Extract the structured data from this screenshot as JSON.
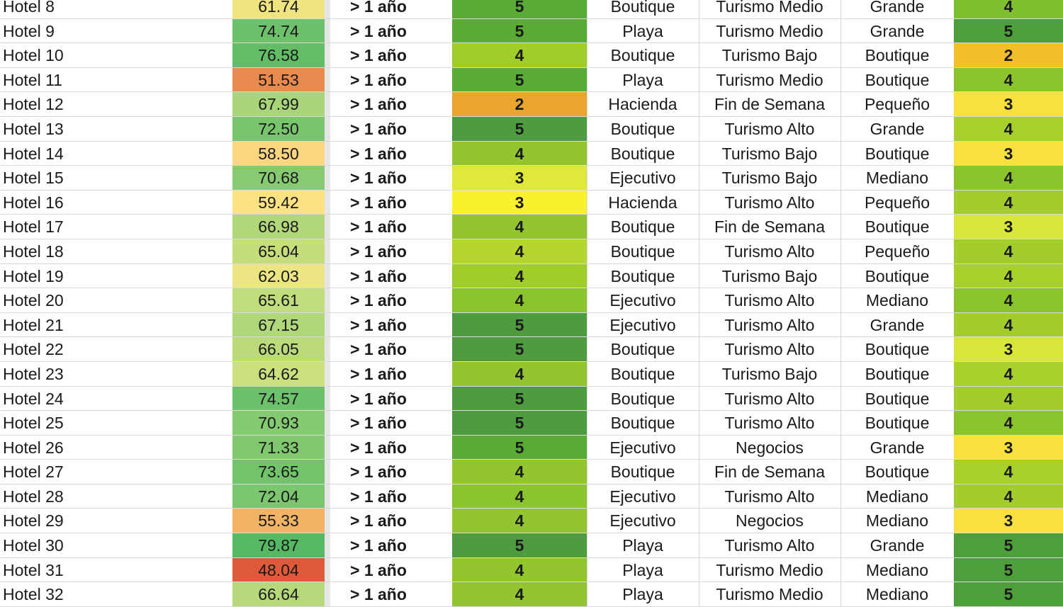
{
  "rows": [
    {
      "name": "Hotel 8",
      "score": "61.74",
      "score_color": "#f0e481",
      "time": "> 1 año",
      "rating": "5",
      "rating_color": "#5aaa36",
      "type": "Boutique",
      "segment": "Turismo Medio",
      "size": "Grande",
      "rating2": "4",
      "rating2_color": "#7fc030"
    },
    {
      "name": "Hotel 9",
      "score": "74.74",
      "score_color": "#6cc16a",
      "time": "> 1 año",
      "rating": "5",
      "rating_color": "#5aaa36",
      "type": "Playa",
      "segment": "Turismo Medio",
      "size": "Grande",
      "rating2": "5",
      "rating2_color": "#4f9e3c"
    },
    {
      "name": "Hotel 10",
      "score": "76.58",
      "score_color": "#63bd66",
      "time": "> 1 año",
      "rating": "4",
      "rating_color": "#a1cd2a",
      "type": "Boutique",
      "segment": "Turismo Bajo",
      "size": "Boutique",
      "rating2": "2",
      "rating2_color": "#f3bd2c"
    },
    {
      "name": "Hotel 11",
      "score": "51.53",
      "score_color": "#e88a4e",
      "time": "> 1 año",
      "rating": "5",
      "rating_color": "#5aaa36",
      "type": "Playa",
      "segment": "Turismo Medio",
      "size": "Boutique",
      "rating2": "4",
      "rating2_color": "#8cc42c"
    },
    {
      "name": "Hotel 12",
      "score": "67.99",
      "score_color": "#a8d57a",
      "time": "> 1 año",
      "rating": "2",
      "rating_color": "#eaa52e",
      "type": "Hacienda",
      "segment": "Fin de Semana",
      "size": "Pequeño",
      "rating2": "3",
      "rating2_color": "#f7e13c"
    },
    {
      "name": "Hotel 13",
      "score": "72.50",
      "score_color": "#79c56e",
      "time": "> 1 año",
      "rating": "5",
      "rating_color": "#4e9b40",
      "type": "Boutique",
      "segment": "Turismo Alto",
      "size": "Grande",
      "rating2": "4",
      "rating2_color": "#a8d02c"
    },
    {
      "name": "Hotel 14",
      "score": "58.50",
      "score_color": "#fbd580",
      "time": "> 1 año",
      "rating": "4",
      "rating_color": "#93c62e",
      "type": "Boutique",
      "segment": "Turismo Bajo",
      "size": "Boutique",
      "rating2": "3",
      "rating2_color": "#f8e03e"
    },
    {
      "name": "Hotel 15",
      "score": "70.68",
      "score_color": "#86ca72",
      "time": "> 1 año",
      "rating": "3",
      "rating_color": "#dfe93a",
      "type": "Ejecutivo",
      "segment": "Turismo Bajo",
      "size": "Mediano",
      "rating2": "4",
      "rating2_color": "#8cc42c"
    },
    {
      "name": "Hotel 16",
      "score": "59.42",
      "score_color": "#fce282",
      "time": "> 1 año",
      "rating": "3",
      "rating_color": "#f8f12c",
      "type": "Hacienda",
      "segment": "Turismo Alto",
      "size": "Pequeño",
      "rating2": "4",
      "rating2_color": "#a3cd2c"
    },
    {
      "name": "Hotel 17",
      "score": "66.98",
      "score_color": "#b2d87a",
      "time": "> 1 año",
      "rating": "4",
      "rating_color": "#93c62e",
      "type": "Boutique",
      "segment": "Fin de Semana",
      "size": "Boutique",
      "rating2": "3",
      "rating2_color": "#d6e63a"
    },
    {
      "name": "Hotel 18",
      "score": "65.04",
      "score_color": "#c6dd7c",
      "time": "> 1 año",
      "rating": "4",
      "rating_color": "#b5d62c",
      "type": "Boutique",
      "segment": "Turismo Alto",
      "size": "Pequeño",
      "rating2": "4",
      "rating2_color": "#a3cd2c"
    },
    {
      "name": "Hotel 19",
      "score": "62.03",
      "score_color": "#ebe584",
      "time": "> 1 año",
      "rating": "4",
      "rating_color": "#a1cd2a",
      "type": "Boutique",
      "segment": "Turismo Bajo",
      "size": "Boutique",
      "rating2": "4",
      "rating2_color": "#a8d02c"
    },
    {
      "name": "Hotel 20",
      "score": "65.61",
      "score_color": "#c1dc7c",
      "time": "> 1 año",
      "rating": "4",
      "rating_color": "#8cc42e",
      "type": "Ejecutivo",
      "segment": "Turismo Alto",
      "size": "Mediano",
      "rating2": "4",
      "rating2_color": "#8cc42c"
    },
    {
      "name": "Hotel 21",
      "score": "67.15",
      "score_color": "#b0d77a",
      "time": "> 1 año",
      "rating": "5",
      "rating_color": "#4e9b40",
      "type": "Ejecutivo",
      "segment": "Turismo Alto",
      "size": "Grande",
      "rating2": "4",
      "rating2_color": "#a3cd2c"
    },
    {
      "name": "Hotel 22",
      "score": "66.05",
      "score_color": "#bbda7b",
      "time": "> 1 año",
      "rating": "5",
      "rating_color": "#4e9b40",
      "type": "Boutique",
      "segment": "Turismo Alto",
      "size": "Boutique",
      "rating2": "3",
      "rating2_color": "#d6e63a"
    },
    {
      "name": "Hotel 23",
      "score": "64.62",
      "score_color": "#cadf7e",
      "time": "> 1 año",
      "rating": "4",
      "rating_color": "#93c62e",
      "type": "Boutique",
      "segment": "Turismo Bajo",
      "size": "Boutique",
      "rating2": "4",
      "rating2_color": "#a8d02c"
    },
    {
      "name": "Hotel 24",
      "score": "74.57",
      "score_color": "#6cc16a",
      "time": "> 1 año",
      "rating": "5",
      "rating_color": "#4e9b40",
      "type": "Boutique",
      "segment": "Turismo Alto",
      "size": "Boutique",
      "rating2": "4",
      "rating2_color": "#a3cd2c"
    },
    {
      "name": "Hotel 25",
      "score": "70.93",
      "score_color": "#84ca71",
      "time": "> 1 año",
      "rating": "5",
      "rating_color": "#4e9b40",
      "type": "Boutique",
      "segment": "Turismo Alto",
      "size": "Boutique",
      "rating2": "4",
      "rating2_color": "#8cc42c"
    },
    {
      "name": "Hotel 26",
      "score": "71.33",
      "score_color": "#80c870",
      "time": "> 1 año",
      "rating": "5",
      "rating_color": "#5aaa36",
      "type": "Ejecutivo",
      "segment": "Negocios",
      "size": "Grande",
      "rating2": "3",
      "rating2_color": "#f8e03e"
    },
    {
      "name": "Hotel 27",
      "score": "73.65",
      "score_color": "#72c36c",
      "time": "> 1 año",
      "rating": "4",
      "rating_color": "#93c62e",
      "type": "Boutique",
      "segment": "Fin de Semana",
      "size": "Boutique",
      "rating2": "4",
      "rating2_color": "#a8d02c"
    },
    {
      "name": "Hotel 28",
      "score": "72.04",
      "score_color": "#7bc66f",
      "time": "> 1 año",
      "rating": "4",
      "rating_color": "#8cc42e",
      "type": "Ejecutivo",
      "segment": "Turismo Alto",
      "size": "Mediano",
      "rating2": "4",
      "rating2_color": "#a3cd2c"
    },
    {
      "name": "Hotel 29",
      "score": "55.33",
      "score_color": "#f1b466",
      "time": "> 1 año",
      "rating": "4",
      "rating_color": "#93c62e",
      "type": "Ejecutivo",
      "segment": "Negocios",
      "size": "Mediano",
      "rating2": "3",
      "rating2_color": "#f8e03e"
    },
    {
      "name": "Hotel 30",
      "score": "79.87",
      "score_color": "#56b863",
      "time": "> 1 año",
      "rating": "5",
      "rating_color": "#4e9b40",
      "type": "Playa",
      "segment": "Turismo Alto",
      "size": "Grande",
      "rating2": "5",
      "rating2_color": "#4f9e3c"
    },
    {
      "name": "Hotel 31",
      "score": "48.04",
      "score_color": "#de5a3a",
      "time": "> 1 año",
      "rating": "4",
      "rating_color": "#93c62e",
      "type": "Playa",
      "segment": "Turismo Medio",
      "size": "Mediano",
      "rating2": "5",
      "rating2_color": "#4f9e3c"
    },
    {
      "name": "Hotel 32",
      "score": "66.64",
      "score_color": "#b5d87a",
      "time": "> 1 año",
      "rating": "4",
      "rating_color": "#93c62e",
      "type": "Playa",
      "segment": "Turismo Medio",
      "size": "Mediano",
      "rating2": "5",
      "rating2_color": "#4f9e3c"
    }
  ]
}
